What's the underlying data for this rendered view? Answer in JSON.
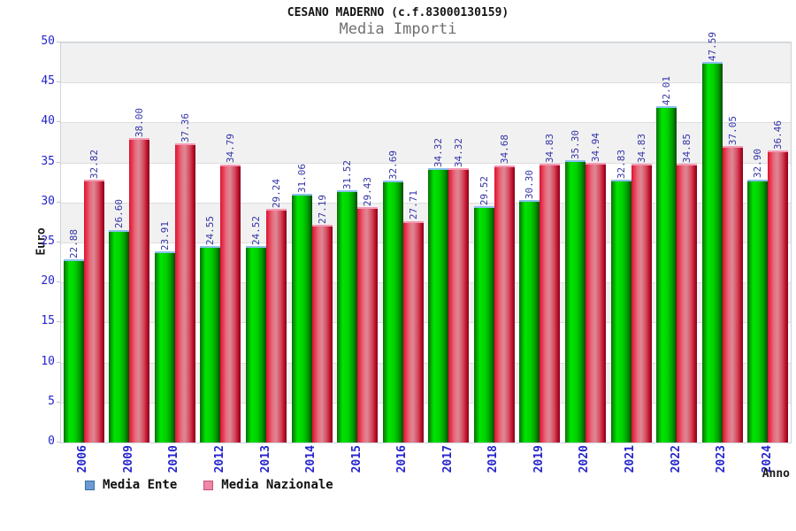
{
  "header": {
    "title": "CESANO MADERNO (c.f.83000130159)",
    "subtitle": "Media Importi"
  },
  "axes": {
    "y_title": "Euro",
    "x_title": "Anno",
    "y_ticks": [
      0,
      5,
      10,
      15,
      20,
      25,
      30,
      35,
      40,
      45,
      50
    ]
  },
  "legend": [
    {
      "label": "Media Ente",
      "swatch": "#6b9bd2",
      "swatch_border": "#3a6ea5"
    },
    {
      "label": "Media Nazionale",
      "swatch": "#ef87a7",
      "swatch_border": "#c05577"
    }
  ],
  "colors": {
    "bar_green": "#00cc00",
    "bar_red": "#d8495c",
    "tick_blue": "#2424cd",
    "value_label_blue": "#3434a8",
    "band_gray": "#f1f1f1"
  },
  "chart_data": {
    "type": "bar",
    "title": "CESANO MADERNO (c.f.83000130159)",
    "subtitle": "Media Importi",
    "xlabel": "Anno",
    "ylabel": "Euro",
    "ylim": [
      0,
      50
    ],
    "ytick_step": 5,
    "grid": "alternating horizontal gray/white bands every 5 units with light gridlines",
    "legend_position": "bottom-left",
    "value_labels": "rotated 90deg, shown above each bar",
    "categories": [
      "2006",
      "2009",
      "2010",
      "2012",
      "2013",
      "2014",
      "2015",
      "2016",
      "2017",
      "2018",
      "2019",
      "2020",
      "2021",
      "2022",
      "2023",
      "2024"
    ],
    "series": [
      {
        "name": "Media Ente",
        "color": "#00cc00",
        "values": [
          22.88,
          26.6,
          23.91,
          24.55,
          24.52,
          31.06,
          31.52,
          32.69,
          34.32,
          29.52,
          30.3,
          35.3,
          32.83,
          42.01,
          47.59,
          32.9
        ]
      },
      {
        "name": "Media Nazionale",
        "color": "#d8495c",
        "values": [
          32.82,
          38.0,
          37.36,
          34.79,
          29.24,
          27.19,
          29.43,
          27.71,
          34.32,
          34.68,
          34.83,
          34.94,
          34.83,
          34.85,
          37.05,
          36.46
        ]
      }
    ]
  }
}
